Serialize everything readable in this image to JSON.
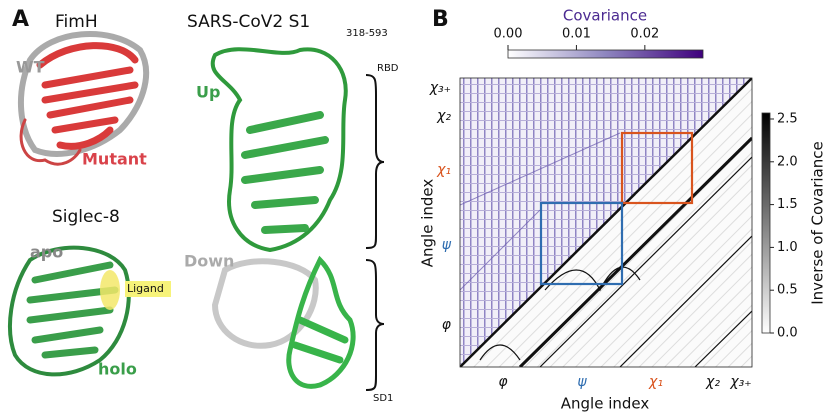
{
  "panel_a": {
    "label": "A",
    "fimh": {
      "title": "FimH",
      "wt": "WT",
      "mutant": "Mutant"
    },
    "siglec": {
      "title": "Siglec-8",
      "apo": "apo",
      "ligand": "Ligand",
      "holo": "holo"
    },
    "sars": {
      "title": "SARS-CoV2 S1",
      "subscript": "318-593",
      "up": "Up",
      "down": "Down",
      "rbd": "RBD",
      "sd1": "SD1"
    }
  },
  "panel_b": {
    "label": "B",
    "covariance_colorbar": {
      "title": "Covariance",
      "lim": [
        0,
        0.0285
      ],
      "ticks": [
        {
          "value": 0,
          "label": "0.00"
        },
        {
          "value": 0.01,
          "label": "0.01"
        },
        {
          "value": 0.02,
          "label": "0.02"
        }
      ]
    },
    "inverse_colorbar": {
      "title": "Inverse of Covariance",
      "lim": [
        0,
        2.57
      ],
      "ticks": [
        {
          "value": 0,
          "label": "0.0"
        },
        0.5,
        {
          "value": 1,
          "label": "1.0"
        },
        1.5,
        {
          "value": 2,
          "label": "2.0"
        },
        2.5
      ]
    },
    "x_axis": {
      "title": "Angle index",
      "groups": [
        "φ",
        "ψ",
        "χ₁",
        "χ₂",
        "χ₃₊"
      ]
    },
    "y_axis": {
      "title": "Angle index",
      "groups": [
        "φ",
        "ψ",
        "χ₁",
        "χ₂",
        "χ₃₊"
      ]
    }
  }
}
